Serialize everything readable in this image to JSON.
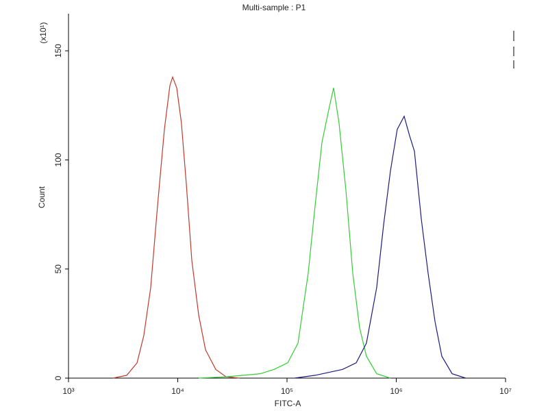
{
  "chart_data": {
    "type": "line",
    "title": "Multi-sample : P1",
    "x_label": "FITC-A",
    "y_label": "Count",
    "y_unit_label": "(x10¹)",
    "xscale": "log",
    "xlim": [
      1000,
      10000000
    ],
    "xticks": [
      {
        "value": 1000,
        "label": "10³"
      },
      {
        "value": 10000,
        "label": "10⁴"
      },
      {
        "value": 100000,
        "label": "10⁵"
      },
      {
        "value": 1000000,
        "label": "10⁶"
      },
      {
        "value": 10000000,
        "label": "10⁷"
      }
    ],
    "ylim": [
      0,
      167
    ],
    "yticks": [
      0,
      50,
      100,
      150
    ],
    "grid": false,
    "series": [
      {
        "color": "#c0392b",
        "x": [
          2560,
          3410,
          4240,
          4890,
          5650,
          6530,
          7550,
          8470,
          8970,
          9790,
          10800,
          11970,
          13450,
          15530,
          17950,
          22280,
          27670,
          36900
        ],
        "values": [
          0,
          1.3,
          7,
          19.5,
          41.5,
          79,
          114,
          134,
          138,
          133,
          117,
          89,
          54,
          29,
          13,
          4,
          0.6,
          0
        ]
      },
      {
        "color": "#33cc33",
        "x": [
          15530,
          27670,
          56900,
          76000,
          101400,
          125900,
          156300,
          180700,
          208900,
          241000,
          266700,
          299300,
          346000,
          400000,
          462000,
          533000,
          662000,
          885000
        ],
        "values": [
          0,
          0.6,
          2,
          4,
          7,
          16,
          48,
          79,
          108,
          123,
          133,
          117,
          86,
          48,
          23,
          10,
          2,
          0
        ]
      },
      {
        "color": "#1a1a80",
        "x": [
          117200,
          180700,
          322000,
          430000,
          533000,
          662000,
          765000,
          885000,
          1021000,
          1181000,
          1325000,
          1466000,
          1693000,
          1958000,
          2260000,
          2612000,
          3245000,
          4325000
        ],
        "values": [
          0,
          1.3,
          4,
          7,
          16,
          41.5,
          70,
          95,
          114,
          120,
          111,
          104,
          73,
          48,
          26,
          10,
          2,
          0
        ]
      }
    ]
  }
}
